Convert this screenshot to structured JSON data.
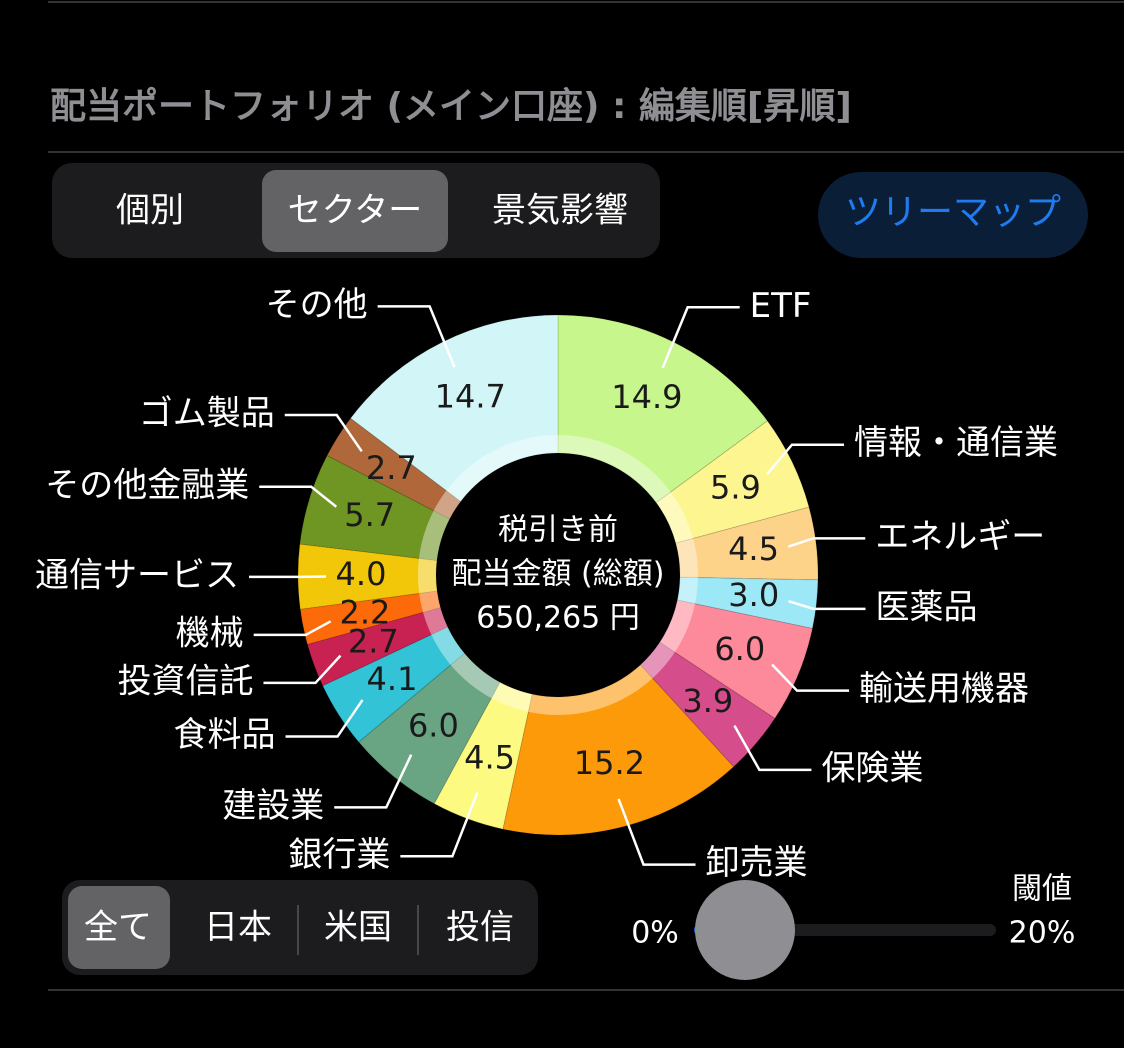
{
  "header": {
    "title": "配当ポートフォリオ (メイン口座) : 編集順[昇順]"
  },
  "tabs": [
    "個別",
    "セクター",
    "景気影響"
  ],
  "treemap_button": "ツリーマップ",
  "chart_data": {
    "type": "pie",
    "center_text": [
      "税引き前",
      "配当金額 (総額)",
      "650,265 円"
    ],
    "categories": [
      "ETF",
      "情報・通信業",
      "エネルギー",
      "医薬品",
      "輸送用機器",
      "保険業",
      "卸売業",
      "銀行業",
      "建設業",
      "食料品",
      "投資信託",
      "機械",
      "通信サービス",
      "その他金融業",
      "ゴム製品",
      "その他"
    ],
    "values": [
      14.9,
      5.9,
      4.5,
      3.0,
      6.0,
      3.9,
      15.2,
      4.5,
      6.0,
      4.1,
      2.7,
      2.2,
      4.0,
      5.7,
      2.7,
      14.7
    ],
    "value_labels": [
      "14.9",
      "5.9",
      "4.5",
      "3.0",
      "6.0",
      "3.9",
      "15.2",
      "4.5",
      "6.0",
      "4.1",
      "2.7",
      "2.2",
      "4.0",
      "5.7",
      "2.7",
      "14.7"
    ],
    "colors": [
      "#c6f68c",
      "#fdf58f",
      "#fdd38a",
      "#9de8f7",
      "#fd8a9a",
      "#d64d8c",
      "#fd9a0a",
      "#fdfa82",
      "#6aa583",
      "#32c3d6",
      "#c82252",
      "#fd6a0a",
      "#f2c609",
      "#6f9523",
      "#b0683a",
      "#d2f6f7"
    ]
  },
  "filters": [
    "全て",
    "日本",
    "米国",
    "投信"
  ],
  "slider": {
    "label": "閾値",
    "min_label": "0%",
    "max_label": "20%"
  }
}
